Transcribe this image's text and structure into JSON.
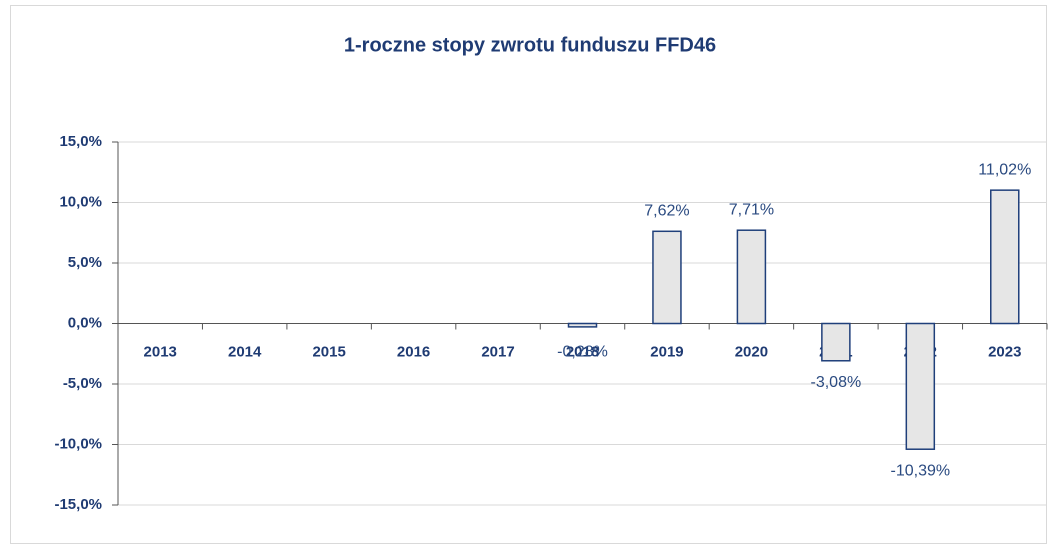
{
  "chart_data": {
    "type": "bar",
    "title": "1-roczne stopy zwrotu funduszu FFD46",
    "categories": [
      "2013",
      "2014",
      "2015",
      "2016",
      "2017",
      "2018",
      "2019",
      "2020",
      "2021",
      "2022",
      "2023"
    ],
    "values": [
      null,
      null,
      null,
      null,
      null,
      -0.28,
      7.62,
      7.71,
      -3.08,
      -10.39,
      11.02
    ],
    "value_labels": [
      null,
      null,
      null,
      null,
      null,
      "-0,28%",
      "7,62%",
      "7,71%",
      "-3,08%",
      "-10,39%",
      "11,02%"
    ],
    "color": "#e6e6e6",
    "edge_color": "#1f3f7a",
    "ylim": [
      -15,
      15
    ],
    "yticks": [
      {
        "value": -15,
        "label": "-15,0%"
      },
      {
        "value": -10,
        "label": "-10,0%"
      },
      {
        "value": -5,
        "label": "-5,0%"
      },
      {
        "value": 0,
        "label": "0,0%"
      },
      {
        "value": 5,
        "label": "5,0%"
      },
      {
        "value": 10,
        "label": "10,0%"
      },
      {
        "value": 15,
        "label": "15,0%"
      }
    ],
    "grid": true
  }
}
